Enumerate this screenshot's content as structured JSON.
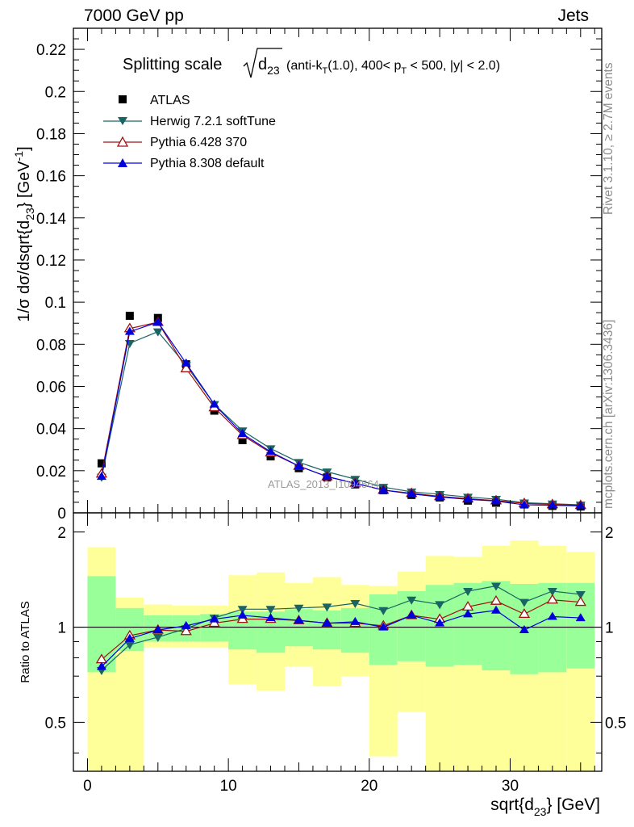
{
  "header": {
    "left": "7000 GeV pp",
    "right": "Jets"
  },
  "side_labels": {
    "rivet": "Rivet 3.1.10, ≥ 2.7M events",
    "mcplots": "mcplots.cern.ch [arXiv:1306.3436]"
  },
  "chart_data": [
    {
      "type": "scatter",
      "title": "Splitting scale",
      "title_observable": "d",
      "title_observable_sub": "23",
      "title_cuts_1": "(anti-k",
      "title_cuts_1_sub": "T",
      "title_cuts_2": "(1.0), 400< p",
      "title_cuts_2_sub": "T",
      "title_cuts_3": " < 500, |y| < 2.0)",
      "ylabel": "1/σ dσ/dsqrt{d",
      "ylabel_sub": "23",
      "ylabel_end": "} [GeV",
      "ylabel_sup": "-1",
      "ylabel_close": "]",
      "watermark": "ATLAS_2013_I1094564",
      "xlim": [
        -1,
        36.5
      ],
      "ylim": [
        0,
        0.23
      ],
      "yticks": [
        0,
        0.02,
        0.04,
        0.06,
        0.08,
        0.1,
        0.12,
        0.14,
        0.16,
        0.18,
        0.2,
        0.22
      ],
      "ytick_labels": [
        "0",
        "0.02",
        "0.04",
        "0.06",
        "0.08",
        "0.1",
        "0.12",
        "0.14",
        "0.16",
        "0.18",
        "0.2",
        "0.22"
      ],
      "x": [
        1,
        3,
        5,
        7,
        9,
        11,
        13,
        15,
        17,
        19,
        21,
        23,
        25,
        27,
        29,
        31,
        33,
        35
      ],
      "legend_position": "top-left",
      "series": [
        {
          "name": "ATLAS",
          "marker": "square",
          "color": "#000000",
          "values": [
            0.0235,
            0.0935,
            0.0925,
            0.0705,
            0.0485,
            0.0345,
            0.0268,
            0.0212,
            0.0168,
            0.0135,
            0.0107,
            0.0085,
            0.0073,
            0.0058,
            0.0048,
            0.004,
            0.0033,
            0.003
          ]
        },
        {
          "name": "Herwig 7.2.1 softTune",
          "marker": "triangle-down",
          "color": "#1a6464",
          "values": [
            0.017,
            0.0805,
            0.086,
            0.07,
            0.0515,
            0.039,
            0.0305,
            0.024,
            0.0195,
            0.016,
            0.0122,
            0.01,
            0.0088,
            0.0075,
            0.0065,
            0.0048,
            0.0043,
            0.0038
          ]
        },
        {
          "name": "Pythia 6.428 370",
          "marker": "triangle-open",
          "color": "#a01010",
          "values": [
            0.0185,
            0.0875,
            0.0905,
            0.0685,
            0.05,
            0.0368,
            0.0285,
            0.0222,
            0.0172,
            0.014,
            0.0108,
            0.0093,
            0.0078,
            0.0067,
            0.0058,
            0.0045,
            0.004,
            0.0036
          ]
        },
        {
          "name": "Pythia 8.308 default",
          "marker": "triangle-up",
          "color": "#0000dd",
          "values": [
            0.0172,
            0.086,
            0.0905,
            0.071,
            0.0515,
            0.0375,
            0.029,
            0.0222,
            0.0172,
            0.014,
            0.0108,
            0.009,
            0.0075,
            0.0064,
            0.0056,
            0.0038,
            0.0036,
            0.0033
          ]
        }
      ]
    },
    {
      "type": "scatter",
      "ylabel": "Ratio to ATLAS",
      "xlabel": "sqrt{d",
      "xlabel_sub": "23",
      "xlabel_end": "} [GeV]",
      "xlim": [
        -1,
        36.5
      ],
      "ylim": [
        0.35,
        2.3
      ],
      "xticks": [
        0,
        10,
        20,
        30
      ],
      "xtick_labels": [
        "0",
        "10",
        "20",
        "30"
      ],
      "yticks": [
        0.5,
        1,
        2
      ],
      "ytick_labels": [
        "0.5",
        "1",
        "2"
      ],
      "bins": [
        [
          0,
          2
        ],
        [
          2,
          4
        ],
        [
          4,
          6
        ],
        [
          6,
          8
        ],
        [
          8,
          10
        ],
        [
          10,
          12
        ],
        [
          12,
          14
        ],
        [
          14,
          16
        ],
        [
          16,
          18
        ],
        [
          18,
          20
        ],
        [
          20,
          22
        ],
        [
          22,
          24
        ],
        [
          24,
          26
        ],
        [
          26,
          28
        ],
        [
          28,
          30
        ],
        [
          30,
          32
        ],
        [
          32,
          34
        ],
        [
          34,
          36
        ]
      ],
      "band_inner": {
        "color": "#99ff99",
        "low": [
          0.72,
          0.84,
          0.9,
          0.9,
          0.9,
          0.85,
          0.83,
          0.87,
          0.85,
          0.83,
          0.76,
          0.78,
          0.75,
          0.76,
          0.73,
          0.71,
          0.72,
          0.74
        ],
        "high": [
          1.45,
          1.15,
          1.09,
          1.09,
          1.1,
          1.12,
          1.12,
          1.14,
          1.13,
          1.15,
          1.27,
          1.3,
          1.36,
          1.38,
          1.4,
          1.37,
          1.38,
          1.38
        ]
      },
      "band_outer": {
        "color": "#ffff99",
        "low": [
          0.35,
          0.35,
          0.86,
          0.86,
          0.86,
          0.66,
          0.63,
          0.75,
          0.65,
          0.7,
          0.39,
          0.54,
          0.35,
          0.35,
          0.35,
          0.35,
          0.35,
          0.35
        ],
        "high": [
          1.79,
          1.24,
          1.18,
          1.17,
          1.17,
          1.46,
          1.49,
          1.38,
          1.44,
          1.36,
          1.35,
          1.5,
          1.68,
          1.67,
          1.81,
          1.88,
          1.81,
          1.73
        ]
      },
      "x": [
        1,
        3,
        5,
        7,
        9,
        11,
        13,
        15,
        17,
        19,
        21,
        23,
        25,
        27,
        29,
        31,
        33,
        35
      ],
      "series": [
        {
          "name": "Herwig 7.2.1 softTune",
          "marker": "triangle-down",
          "color": "#1a6464",
          "values": [
            0.73,
            0.88,
            0.93,
            0.99,
            1.07,
            1.14,
            1.14,
            1.15,
            1.16,
            1.19,
            1.13,
            1.22,
            1.18,
            1.3,
            1.35,
            1.2,
            1.3,
            1.27
          ]
        },
        {
          "name": "Pythia 6.428 370",
          "marker": "triangle-open",
          "color": "#a01010",
          "values": [
            0.79,
            0.94,
            0.98,
            0.97,
            1.03,
            1.06,
            1.06,
            1.05,
            1.03,
            1.03,
            1.01,
            1.09,
            1.06,
            1.16,
            1.21,
            1.1,
            1.22,
            1.2
          ]
        },
        {
          "name": "Pythia 8.308 default",
          "marker": "triangle-up",
          "color": "#0000dd",
          "values": [
            0.75,
            0.92,
            0.98,
            1.01,
            1.06,
            1.09,
            1.07,
            1.05,
            1.03,
            1.04,
            1.0,
            1.09,
            1.03,
            1.1,
            1.13,
            0.98,
            1.08,
            1.07
          ]
        }
      ]
    }
  ]
}
